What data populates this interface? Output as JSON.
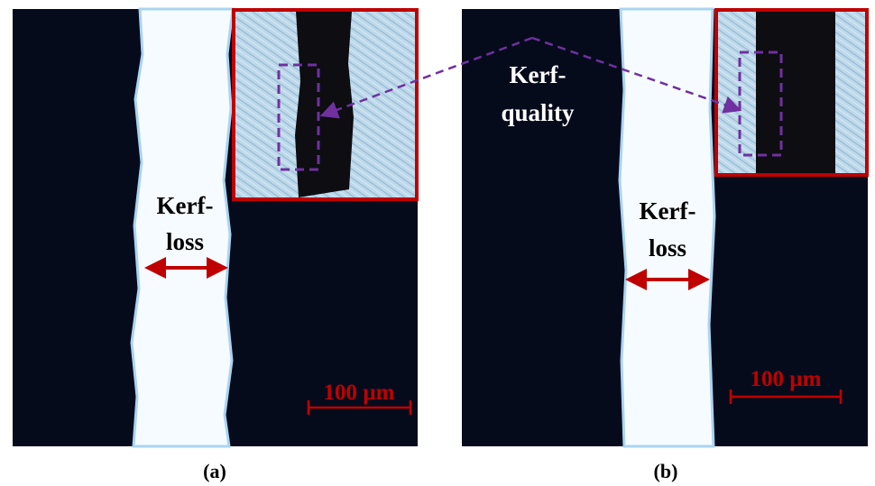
{
  "panels": [
    {
      "label": "(a)",
      "kerf_loss": [
        "Kerf-",
        "loss"
      ],
      "scale_bar": "100 µm"
    },
    {
      "label": "(b)",
      "kerf_quality": [
        "Kerf-",
        "quality"
      ],
      "kerf_loss": [
        "Kerf-",
        "loss"
      ],
      "scale_bar": "100 µm"
    }
  ]
}
